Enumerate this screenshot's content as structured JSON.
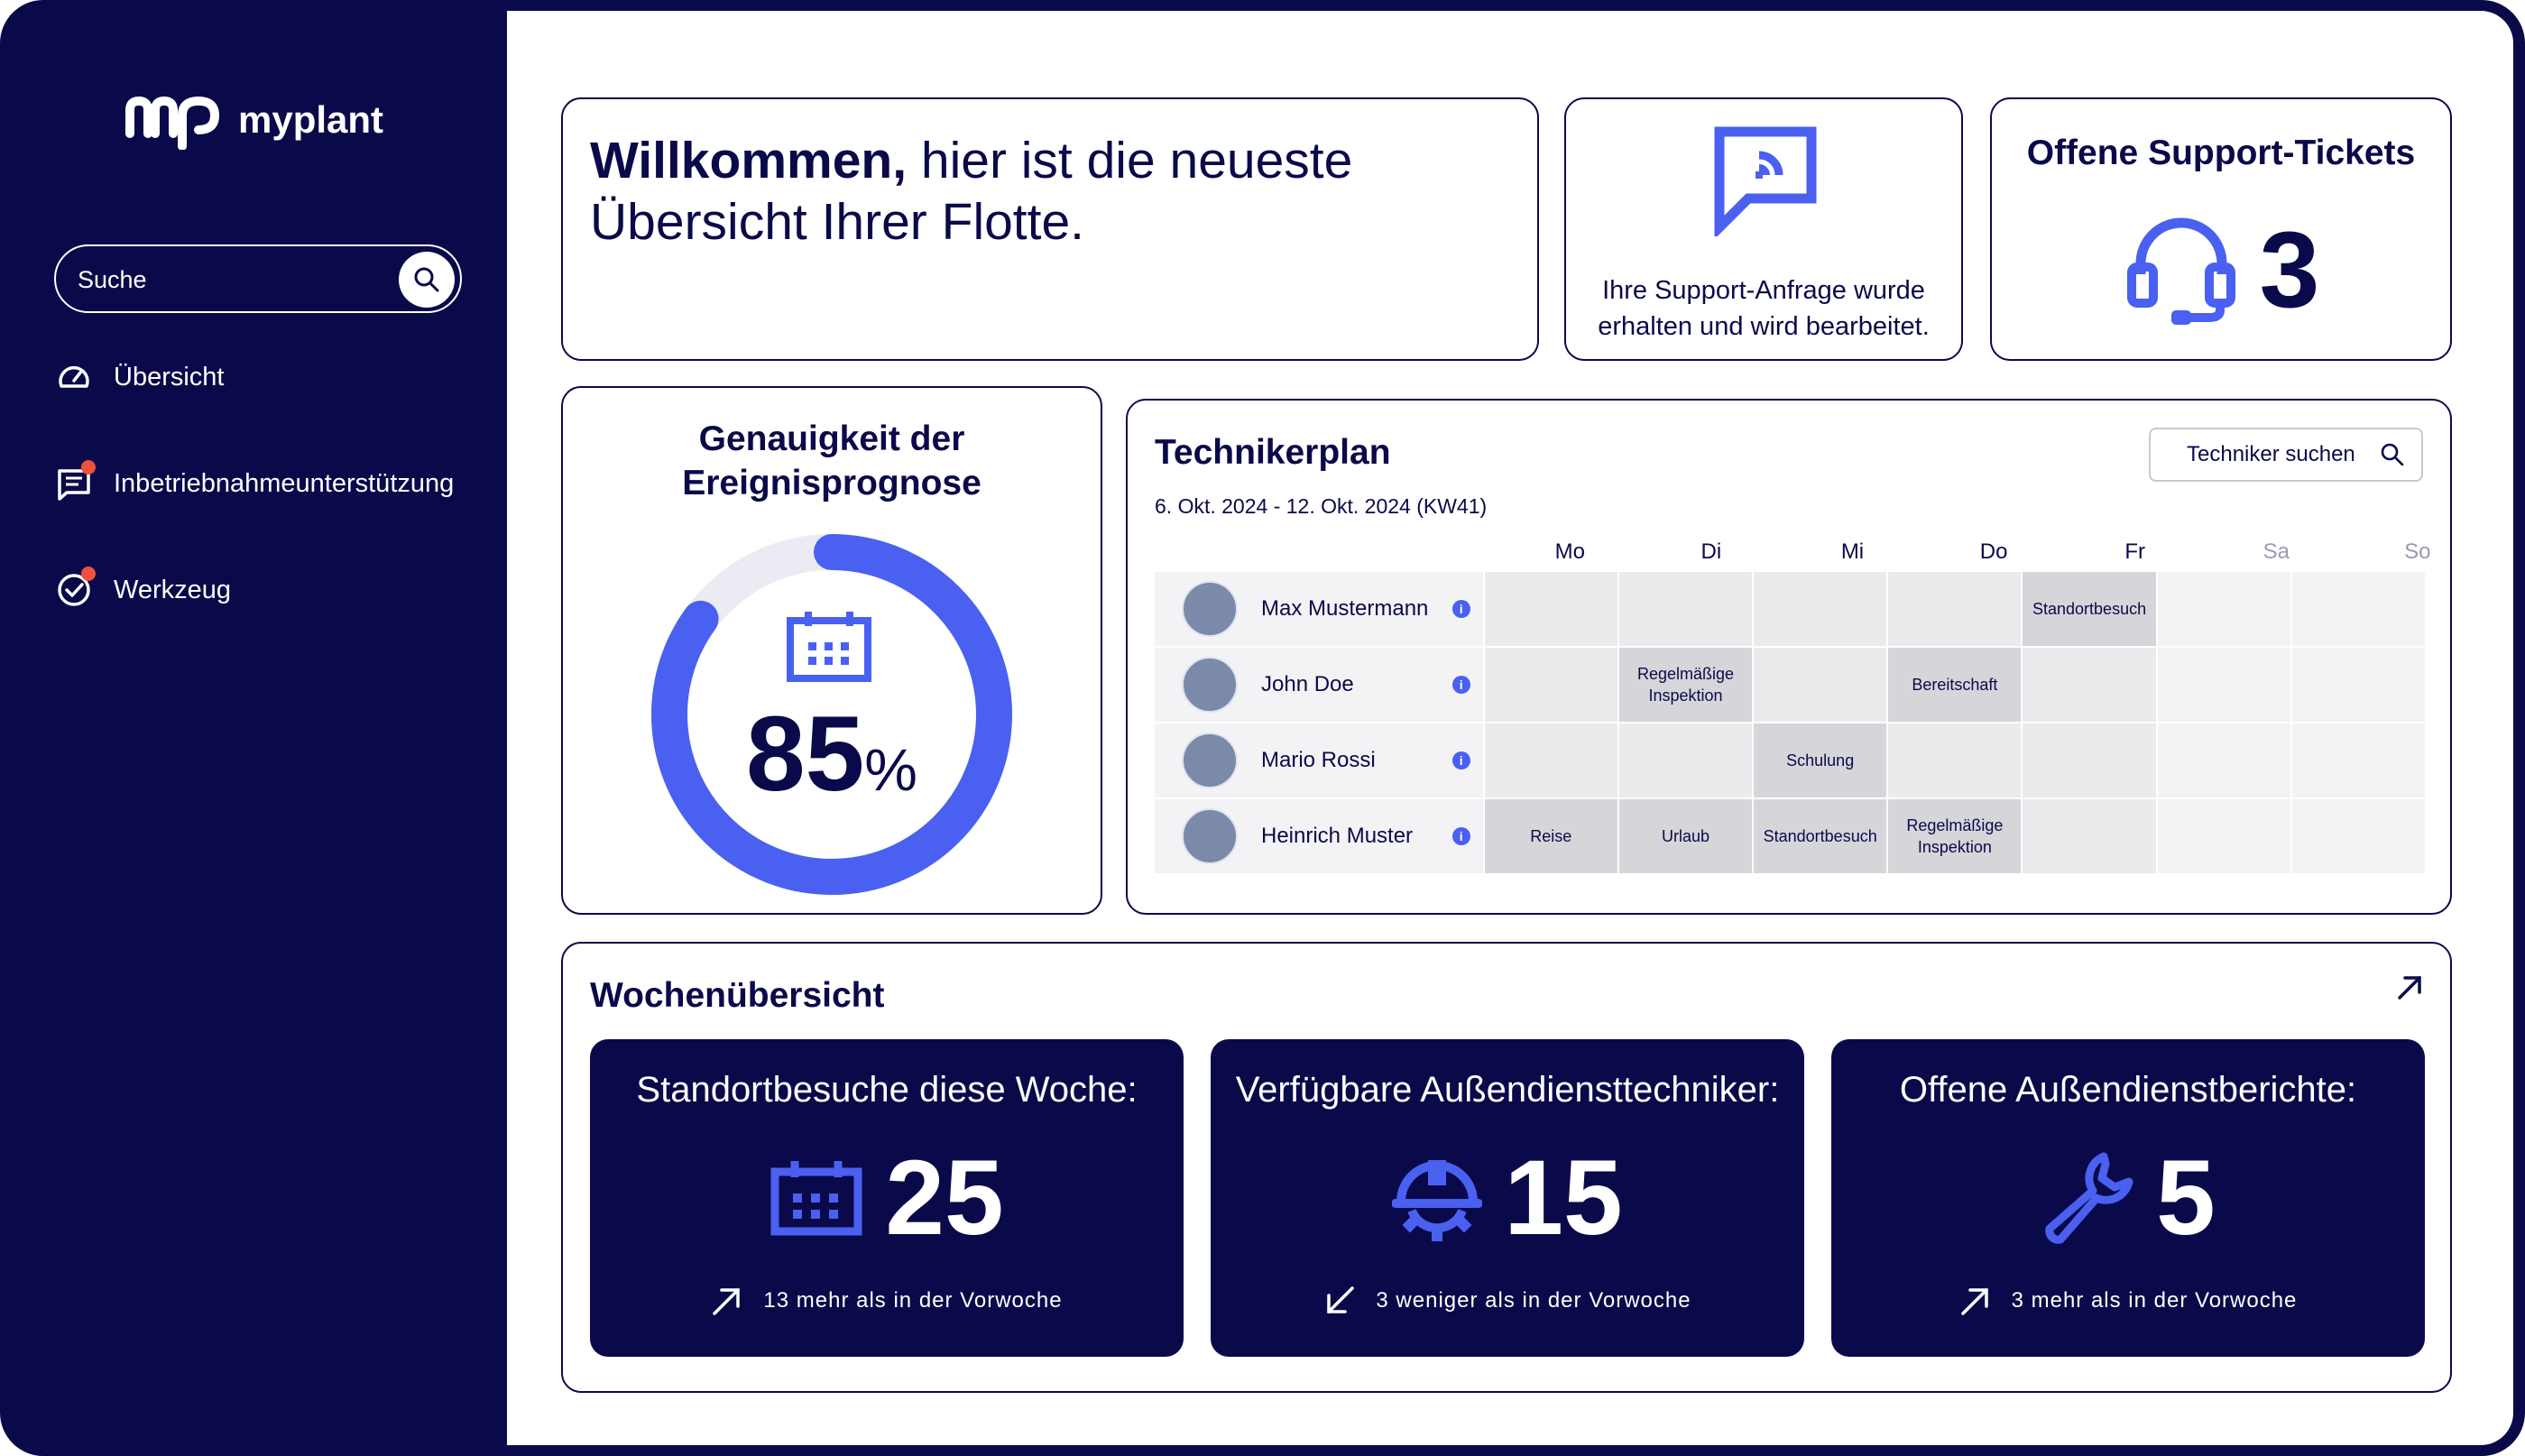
{
  "app": {
    "brand": "myplant"
  },
  "sidebar": {
    "search_placeholder": "Suche",
    "items": [
      {
        "label": "Übersicht",
        "icon": "gauge-icon"
      },
      {
        "label": "Inbetriebnahmeunterstützung",
        "icon": "message-icon",
        "badge": true
      },
      {
        "label": "Werkzeug",
        "icon": "check-circle-icon",
        "badge": true
      }
    ]
  },
  "welcome": {
    "bold": "Willkommen,",
    "rest": " hier ist die neueste Übersicht Ihrer Flotte."
  },
  "support": {
    "message": "Ihre Support-Anfrage wurde erhalten und wird bearbeitet.",
    "icon": "support-chat-icon"
  },
  "tickets": {
    "title": "Offene Support-Tickets",
    "count": "3",
    "icon": "headset-icon"
  },
  "accuracy": {
    "title": "Genauigkeit der Ereignisprognose",
    "value": "85",
    "unit": "%",
    "fraction": 0.85,
    "icon": "calendar-icon"
  },
  "plan": {
    "title": "Technikerplan",
    "range": "6. Okt. 2024 - 12. Okt. 2024 (KW41)",
    "search_label": "Techniker suchen",
    "days": [
      "Mo",
      "Di",
      "Mi",
      "Do",
      "Fr",
      "Sa",
      "So"
    ],
    "technicians": [
      {
        "name": "Max Mustermann",
        "cells": [
          "",
          "",
          "",
          "",
          "Standortbesuch",
          "",
          ""
        ]
      },
      {
        "name": "John Doe",
        "cells": [
          "",
          "Regelmäßige Inspektion",
          "",
          "Bereitschaft",
          "",
          "",
          ""
        ]
      },
      {
        "name": "Mario Rossi",
        "cells": [
          "",
          "",
          "Schulung",
          "",
          "",
          "",
          ""
        ]
      },
      {
        "name": "Heinrich Muster",
        "cells": [
          "Reise",
          "Urlaub",
          "Standortbesuch",
          "Regelmäßige Inspektion",
          "",
          "",
          ""
        ]
      }
    ]
  },
  "weekly": {
    "title": "Wochenübersicht",
    "stats": [
      {
        "title": "Standortbesuche diese Woche:",
        "value": "25",
        "trend": "up",
        "note": "13 mehr als in der Vorwoche",
        "icon": "calendar-icon"
      },
      {
        "title": "Verfügbare Außendiensttechniker:",
        "value": "15",
        "trend": "down",
        "note": "3 weniger als in der Vorwoche",
        "icon": "helmet-gear-icon"
      },
      {
        "title": "Offene Außendienstberichte:",
        "value": "5",
        "trend": "up",
        "note": "3 mehr als in der Vorwoche",
        "icon": "wrench-icon"
      }
    ]
  },
  "colors": {
    "navy": "#0a0a4a",
    "accent": "#4a60f0",
    "badge": "#f0503c"
  }
}
